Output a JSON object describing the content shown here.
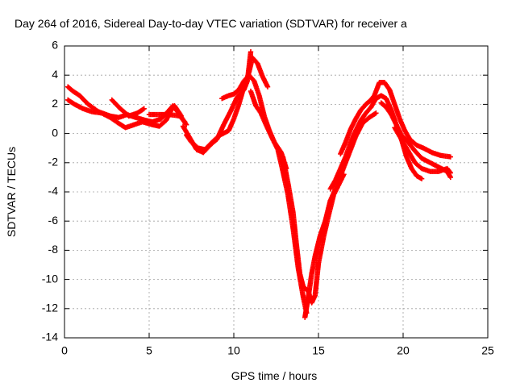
{
  "chart_data": {
    "type": "scatter",
    "title": "Day 264 of 2016, Sidereal Day-to-day VTEC variation (SDTVAR) for receiver a",
    "xlabel": "GPS time / hours",
    "ylabel": "SDTVAR / TECUs",
    "xlim": [
      0,
      25
    ],
    "ylim": [
      -14,
      6
    ],
    "x_ticks": [
      0,
      5,
      10,
      15,
      20,
      25
    ],
    "y_ticks": [
      -14,
      -12,
      -10,
      -8,
      -6,
      -4,
      -2,
      0,
      2,
      4,
      6
    ],
    "grid": true,
    "series_color": "#ff0000",
    "series": [
      {
        "points": [
          [
            0.2,
            3.2
          ],
          [
            0.5,
            2.9
          ],
          [
            0.9,
            2.6
          ],
          [
            1.4,
            2.0
          ],
          [
            2.0,
            1.5
          ],
          [
            2.7,
            1.2
          ],
          [
            3.2,
            1.1
          ],
          [
            3.7,
            1.3
          ],
          [
            4.2,
            1.1
          ],
          [
            4.8,
            0.9
          ],
          [
            5.2,
            0.8
          ],
          [
            5.7,
            1.0
          ],
          [
            6.1,
            1.5
          ],
          [
            6.4,
            1.9
          ],
          [
            6.8,
            1.3
          ],
          [
            7.2,
            0.6
          ]
        ]
      },
      {
        "points": [
          [
            0.2,
            2.3
          ],
          [
            0.6,
            2.0
          ],
          [
            1.1,
            1.7
          ],
          [
            1.6,
            1.5
          ],
          [
            2.2,
            1.4
          ],
          [
            2.7,
            1.1
          ],
          [
            3.2,
            0.7
          ],
          [
            3.6,
            0.4
          ],
          [
            4.1,
            0.6
          ],
          [
            4.6,
            0.8
          ],
          [
            5.2,
            0.6
          ],
          [
            5.6,
            0.5
          ],
          [
            6.0,
            0.9
          ],
          [
            6.3,
            1.6
          ],
          [
            6.5,
            1.9
          ],
          [
            6.9,
            1.2
          ]
        ]
      },
      {
        "points": [
          [
            2.8,
            2.3
          ],
          [
            3.3,
            1.7
          ],
          [
            3.8,
            1.2
          ],
          [
            4.3,
            1.4
          ],
          [
            4.7,
            1.7
          ]
        ]
      },
      {
        "points": [
          [
            5.0,
            1.3
          ],
          [
            5.6,
            1.3
          ],
          [
            6.2,
            1.3
          ],
          [
            6.8,
            1.2
          ],
          [
            7.1,
            0.8
          ]
        ]
      },
      {
        "points": [
          [
            7.2,
            -0.1
          ],
          [
            7.5,
            -0.6
          ],
          [
            7.9,
            -1.0
          ],
          [
            8.3,
            -1.1
          ],
          [
            8.8,
            -0.5
          ],
          [
            9.2,
            -0.1
          ],
          [
            9.7,
            0.2
          ],
          [
            10.0,
            1.0
          ],
          [
            10.3,
            2.0
          ],
          [
            10.6,
            3.2
          ],
          [
            10.9,
            4.2
          ],
          [
            11.1,
            5.2
          ],
          [
            11.4,
            4.8
          ],
          [
            11.7,
            3.9
          ],
          [
            12.0,
            3.2
          ]
        ]
      },
      {
        "points": [
          [
            7.0,
            0.5
          ],
          [
            7.4,
            -0.3
          ],
          [
            7.8,
            -1.1
          ],
          [
            8.2,
            -1.3
          ],
          [
            8.6,
            -0.8
          ],
          [
            9.0,
            -0.4
          ],
          [
            9.4,
            0.6
          ],
          [
            9.8,
            1.5
          ],
          [
            10.2,
            2.5
          ],
          [
            10.6,
            3.0
          ],
          [
            10.8,
            3.6
          ],
          [
            11.0,
            5.6
          ]
        ]
      },
      {
        "points": [
          [
            9.3,
            2.4
          ],
          [
            9.7,
            2.6
          ],
          [
            10.0,
            2.7
          ],
          [
            10.3,
            3.0
          ],
          [
            10.6,
            3.6
          ],
          [
            10.9,
            4.0
          ],
          [
            11.2,
            3.6
          ],
          [
            11.5,
            2.6
          ],
          [
            11.8,
            1.2
          ],
          [
            12.1,
            0.2
          ],
          [
            12.4,
            -0.6
          ],
          [
            12.8,
            -1.3
          ],
          [
            13.1,
            -2.4
          ]
        ]
      },
      {
        "points": [
          [
            11.0,
            2.9
          ],
          [
            11.3,
            1.9
          ],
          [
            11.6,
            1.4
          ],
          [
            11.9,
            0.6
          ],
          [
            12.3,
            -0.4
          ],
          [
            12.6,
            -1.1
          ],
          [
            12.9,
            -2.6
          ],
          [
            13.2,
            -4.2
          ],
          [
            13.5,
            -6.5
          ],
          [
            13.8,
            -9.2
          ],
          [
            14.1,
            -11.2
          ],
          [
            14.3,
            -12.3
          ]
        ]
      },
      {
        "points": [
          [
            12.9,
            -1.6
          ],
          [
            13.2,
            -3.4
          ],
          [
            13.5,
            -5.4
          ],
          [
            13.7,
            -7.6
          ],
          [
            13.9,
            -9.6
          ],
          [
            14.1,
            -10.5
          ],
          [
            14.4,
            -10.8
          ],
          [
            14.6,
            -11.6
          ],
          [
            14.8,
            -11.1
          ],
          [
            15.0,
            -8.9
          ],
          [
            15.3,
            -7.1
          ],
          [
            15.6,
            -5.6
          ],
          [
            15.9,
            -4.2
          ],
          [
            16.2,
            -3.5
          ],
          [
            16.5,
            -2.8
          ]
        ]
      },
      {
        "points": [
          [
            14.2,
            -12.6
          ],
          [
            14.4,
            -11.2
          ],
          [
            14.6,
            -9.6
          ],
          [
            14.8,
            -8.4
          ],
          [
            15.1,
            -7.0
          ],
          [
            15.4,
            -6.0
          ],
          [
            15.7,
            -4.6
          ],
          [
            16.0,
            -3.8
          ],
          [
            16.4,
            -2.6
          ],
          [
            16.8,
            -1.4
          ],
          [
            17.2,
            -0.2
          ],
          [
            17.6,
            0.7
          ],
          [
            18.0,
            1.1
          ],
          [
            18.4,
            1.4
          ]
        ]
      },
      {
        "points": [
          [
            15.7,
            -3.8
          ],
          [
            16.0,
            -3.2
          ],
          [
            16.3,
            -2.4
          ],
          [
            16.6,
            -1.6
          ],
          [
            16.9,
            -0.6
          ],
          [
            17.2,
            0.2
          ],
          [
            17.5,
            0.9
          ],
          [
            17.8,
            1.4
          ],
          [
            18.1,
            1.8
          ],
          [
            18.4,
            2.4
          ],
          [
            18.7,
            2.6
          ],
          [
            19.0,
            2.4
          ],
          [
            19.3,
            1.6
          ],
          [
            19.6,
            0.6
          ],
          [
            19.9,
            -0.4
          ],
          [
            20.2,
            -1.6
          ],
          [
            20.5,
            -2.4
          ],
          [
            20.8,
            -2.9
          ],
          [
            21.1,
            -3.1
          ]
        ]
      },
      {
        "points": [
          [
            16.3,
            -1.4
          ],
          [
            16.6,
            -0.6
          ],
          [
            16.9,
            0.3
          ],
          [
            17.2,
            1.0
          ],
          [
            17.5,
            1.6
          ],
          [
            17.8,
            2.0
          ],
          [
            18.1,
            2.3
          ],
          [
            18.3,
            2.6
          ],
          [
            18.6,
            3.5
          ],
          [
            18.9,
            3.5
          ],
          [
            19.2,
            3.0
          ],
          [
            19.5,
            2.0
          ],
          [
            19.8,
            1.0
          ],
          [
            20.1,
            0.2
          ],
          [
            20.4,
            -0.4
          ],
          [
            20.8,
            -0.8
          ],
          [
            21.2,
            -1.0
          ],
          [
            21.7,
            -1.3
          ],
          [
            22.2,
            -1.5
          ],
          [
            22.8,
            -1.6
          ]
        ]
      },
      {
        "points": [
          [
            18.7,
            2.1
          ],
          [
            19.0,
            1.8
          ],
          [
            19.3,
            1.3
          ],
          [
            19.6,
            0.6
          ],
          [
            19.9,
            -0.1
          ],
          [
            20.3,
            -0.6
          ],
          [
            20.7,
            -1.2
          ],
          [
            21.1,
            -1.7
          ],
          [
            21.6,
            -2.0
          ],
          [
            22.1,
            -2.3
          ],
          [
            22.6,
            -2.6
          ],
          [
            22.8,
            -3.0
          ]
        ]
      },
      {
        "points": [
          [
            19.5,
            0.4
          ],
          [
            19.8,
            -0.2
          ],
          [
            20.1,
            -0.8
          ],
          [
            20.4,
            -1.4
          ],
          [
            20.7,
            -2.0
          ],
          [
            21.1,
            -2.4
          ],
          [
            21.6,
            -2.6
          ],
          [
            22.1,
            -2.6
          ],
          [
            22.6,
            -2.4
          ],
          [
            22.8,
            -2.7
          ]
        ]
      }
    ]
  }
}
